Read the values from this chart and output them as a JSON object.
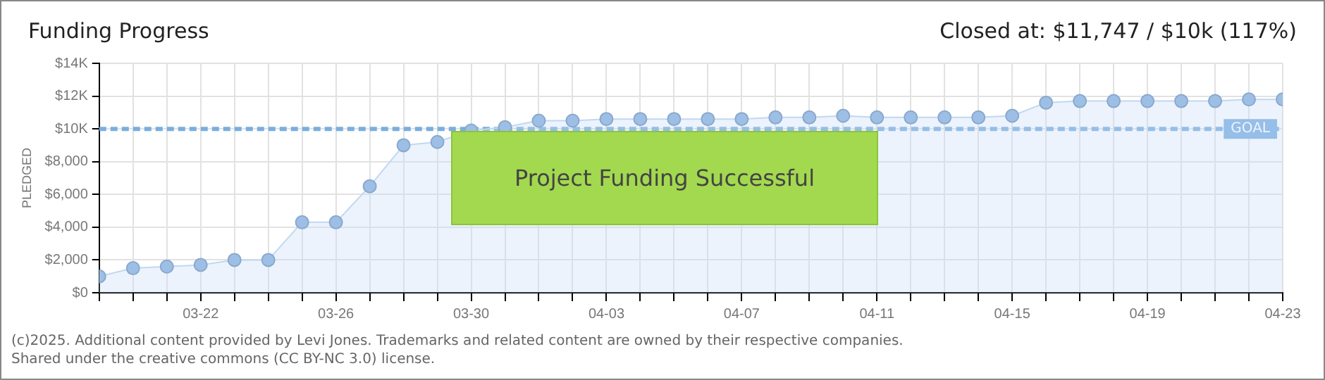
{
  "chart_data": {
    "type": "area",
    "title": "Funding Progress",
    "subtitle": "Closed at: $11,747 / $10k (117%)",
    "ylabel": "PLEDGED",
    "x": [
      "--03-19",
      "--03-20",
      "--03-21",
      "--03-22",
      "--03-23",
      "--03-24",
      "--03-25",
      "--03-26",
      "--03-27",
      "--03-28",
      "--03-29",
      "--03-30",
      "--03-31",
      "--04-01",
      "--04-02",
      "--04-03",
      "--04-04",
      "--04-05",
      "--04-06",
      "--04-07",
      "--04-08",
      "--04-09",
      "--04-10",
      "--04-11",
      "--04-12",
      "--04-13",
      "--04-14",
      "--04-15",
      "--04-16",
      "--04-17",
      "--04-18",
      "--04-19",
      "--04-20",
      "--04-21",
      "--04-22",
      "--04-23"
    ],
    "series": [
      {
        "color": "#9dbfe6",
        "values": [
          1000,
          1500,
          1600,
          1700,
          2000,
          2000,
          4300,
          4300,
          6500,
          9000,
          9200,
          9900,
          10100,
          10500,
          10500,
          10600,
          10600,
          10600,
          10600,
          10600,
          10700,
          10700,
          10800,
          10700,
          10700,
          10700,
          10700,
          10800,
          11600,
          11700,
          11700,
          11700,
          11700,
          11700,
          11800,
          11800
        ]
      }
    ],
    "xlim": [
      "--03-19",
      "--04-23"
    ],
    "xticks": [
      {
        "value": "--03-19",
        "label": null
      },
      {
        "value": "--03-20",
        "label": null
      },
      {
        "value": "--03-21",
        "label": null
      },
      {
        "value": "--03-22",
        "label": "03-22"
      },
      {
        "value": "--03-23",
        "label": null
      },
      {
        "value": "--03-24",
        "label": null
      },
      {
        "value": "--03-25",
        "label": null
      },
      {
        "value": "--03-26",
        "label": "03-26"
      },
      {
        "value": "--03-27",
        "label": null
      },
      {
        "value": "--03-28",
        "label": null
      },
      {
        "value": "--03-29",
        "label": null
      },
      {
        "value": "--03-30",
        "label": "03-30"
      },
      {
        "value": "--03-31",
        "label": null
      },
      {
        "value": "--04-01",
        "label": null
      },
      {
        "value": "--04-02",
        "label": null
      },
      {
        "value": "--04-03",
        "label": "04-03"
      },
      {
        "value": "--04-04",
        "label": null
      },
      {
        "value": "--04-05",
        "label": null
      },
      {
        "value": "--04-06",
        "label": null
      },
      {
        "value": "--04-07",
        "label": "04-07"
      },
      {
        "value": "--04-08",
        "label": null
      },
      {
        "value": "--04-09",
        "label": null
      },
      {
        "value": "--04-10",
        "label": null
      },
      {
        "value": "--04-11",
        "label": "04-11"
      },
      {
        "value": "--04-12",
        "label": null
      },
      {
        "value": "--04-13",
        "label": null
      },
      {
        "value": "--04-14",
        "label": null
      },
      {
        "value": "--04-15",
        "label": "04-15"
      },
      {
        "value": "--04-16",
        "label": null
      },
      {
        "value": "--04-17",
        "label": null
      },
      {
        "value": "--04-18",
        "label": null
      },
      {
        "value": "--04-19",
        "label": "04-19"
      },
      {
        "value": "--04-20",
        "label": null
      },
      {
        "value": "--04-21",
        "label": null
      },
      {
        "value": "--04-22",
        "label": null
      },
      {
        "value": "--04-23",
        "label": "04-23"
      }
    ],
    "ylim": [
      0,
      14000
    ],
    "yticks": [
      {
        "value": 0,
        "label": "$0"
      },
      {
        "value": 2000,
        "label": "$2,000"
      },
      {
        "value": 4000,
        "label": "$4,000"
      },
      {
        "value": 6000,
        "label": "$6,000"
      },
      {
        "value": 8000,
        "label": "$8,000"
      },
      {
        "value": 10000,
        "label": "$10K"
      },
      {
        "value": 12000,
        "label": "$12K"
      },
      {
        "value": 14000,
        "label": "$14K"
      }
    ],
    "ref_lines": [
      {
        "axis": "y",
        "value": 10000,
        "label": "GOAL",
        "color": "#7aaee0",
        "line_style": "dashed"
      }
    ],
    "annotations": [
      "Project Funding Successful",
      "(c)2025. Additional content provided by Levi Jones. Trademarks and related content are owned by their respective companies.",
      "Shared under the creative commons (CC BY-NC 3.0) license."
    ],
    "grid": true,
    "legend": false,
    "marker": "circle",
    "line_style": "solid"
  }
}
